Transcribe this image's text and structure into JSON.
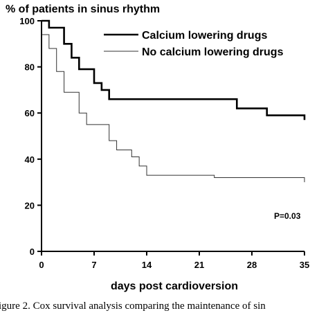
{
  "chart_data": {
    "type": "line",
    "title": "% of patients in sinus rhythm",
    "xlabel": "days post cardioversion",
    "ylabel": "% of patients in sinus rhythm",
    "xlim": [
      0,
      35
    ],
    "ylim": [
      0,
      100
    ],
    "x_ticks": [
      "0",
      "7",
      "14",
      "21",
      "28",
      "35"
    ],
    "y_ticks": [
      "0",
      "20",
      "40",
      "60",
      "80",
      "100"
    ],
    "legend_placement": "top-right",
    "annotation": "P=0.03",
    "step": true,
    "series": [
      {
        "name": "Calcium lowering drugs",
        "color": "#000000",
        "style": "thick",
        "x": [
          0,
          1,
          2,
          3,
          4,
          5,
          7,
          8,
          9,
          25,
          26,
          30,
          35
        ],
        "y": [
          100,
          97,
          97,
          90,
          84,
          79,
          73,
          70,
          66,
          66,
          62,
          59,
          57
        ]
      },
      {
        "name": "No calcium lowering drugs",
        "color": "#333333",
        "style": "thin",
        "x": [
          0,
          1,
          2,
          3,
          5,
          6,
          9,
          10,
          12,
          13,
          14,
          23,
          35
        ],
        "y": [
          94,
          88,
          78,
          69,
          60,
          55,
          48,
          44,
          41,
          37,
          33,
          32,
          30
        ]
      }
    ]
  },
  "caption": "igure 2. Cox survival analysis comparing the maintenance of sin"
}
